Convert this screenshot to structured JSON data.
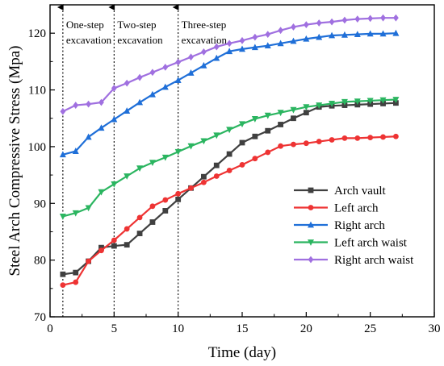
{
  "chart_data": {
    "type": "line",
    "title": "",
    "xlabel": "Time (day)",
    "ylabel": "Steel Arch Compressive Stress (Mpa)",
    "xlim": [
      0,
      30
    ],
    "ylim": [
      70,
      125
    ],
    "xticks": [
      0,
      5,
      10,
      15,
      20,
      25,
      30
    ],
    "yticks": [
      70,
      80,
      90,
      100,
      110,
      120
    ],
    "grid": false,
    "legend_position": "lower-right",
    "annotations": [
      {
        "x": 1,
        "lines": [
          "One-step",
          "excavation"
        ]
      },
      {
        "x": 5,
        "lines": [
          "Two-step",
          "excavation"
        ]
      },
      {
        "x": 10,
        "lines": [
          "Three-step",
          "excavation"
        ]
      }
    ],
    "x": [
      1,
      2,
      3,
      4,
      5,
      6,
      7,
      8,
      9,
      10,
      11,
      12,
      13,
      14,
      15,
      16,
      17,
      18,
      19,
      20,
      21,
      22,
      23,
      24,
      25,
      26,
      27
    ],
    "series": [
      {
        "name": "Arch vault",
        "color": "#404040",
        "marker": "square",
        "values": [
          77.5,
          77.8,
          79.8,
          82.2,
          82.5,
          82.7,
          84.7,
          86.7,
          88.7,
          90.7,
          92.7,
          94.7,
          96.7,
          98.7,
          100.7,
          101.8,
          102.8,
          103.9,
          105.0,
          106.0,
          107.0,
          107.2,
          107.3,
          107.4,
          107.5,
          107.6,
          107.7
        ]
      },
      {
        "name": "Left arch",
        "color": "#ee3333",
        "marker": "circle",
        "values": [
          75.6,
          76.1,
          79.8,
          81.7,
          83.5,
          85.5,
          87.5,
          89.5,
          90.6,
          91.7,
          92.7,
          93.7,
          94.8,
          95.8,
          96.8,
          97.9,
          99.0,
          100.1,
          100.4,
          100.6,
          100.9,
          101.2,
          101.5,
          101.5,
          101.6,
          101.7,
          101.8
        ]
      },
      {
        "name": "Right arch",
        "color": "#1f6fd8",
        "marker": "triangle-up",
        "values": [
          98.6,
          99.2,
          101.7,
          103.3,
          104.8,
          106.3,
          107.8,
          109.2,
          110.5,
          111.7,
          113.0,
          114.3,
          115.6,
          116.8,
          117.2,
          117.5,
          117.8,
          118.2,
          118.6,
          119.0,
          119.3,
          119.6,
          119.7,
          119.8,
          119.9,
          119.9,
          120.0
        ]
      },
      {
        "name": "Left arch waist",
        "color": "#2bb560",
        "marker": "triangle-down",
        "values": [
          87.7,
          88.3,
          89.2,
          92.0,
          93.4,
          94.8,
          96.2,
          97.2,
          98.1,
          99.1,
          100.1,
          101.0,
          102.0,
          103.0,
          104.0,
          104.9,
          105.5,
          106.0,
          106.5,
          107.0,
          107.3,
          107.6,
          107.9,
          108.0,
          108.1,
          108.2,
          108.3
        ]
      },
      {
        "name": "Right arch waist",
        "color": "#a070e0",
        "marker": "diamond",
        "values": [
          106.2,
          107.3,
          107.5,
          107.8,
          110.3,
          111.2,
          112.2,
          113.1,
          114.0,
          114.9,
          115.8,
          116.7,
          117.6,
          118.2,
          118.7,
          119.3,
          119.8,
          120.5,
          121.1,
          121.5,
          121.8,
          122.0,
          122.3,
          122.5,
          122.6,
          122.7,
          122.7
        ]
      }
    ]
  }
}
